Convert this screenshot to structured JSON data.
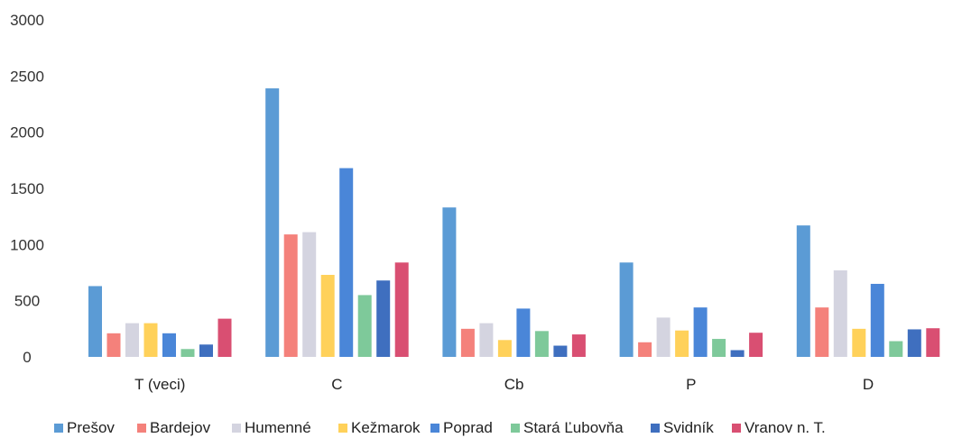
{
  "chart_data": {
    "type": "bar",
    "title": "",
    "xlabel": "",
    "ylabel": "",
    "ylim": [
      0,
      3000
    ],
    "yticks": [
      "0",
      "500",
      "1000",
      "1500",
      "2000",
      "2500",
      "3000"
    ],
    "grid": false,
    "legend_position": "bottom",
    "categories": [
      "T (veci)",
      "C",
      "Cb",
      "P",
      "D"
    ],
    "series": [
      {
        "name": "Prešov",
        "color": "#5b9bd5",
        "values": [
          630,
          2390,
          1330,
          840,
          1170
        ]
      },
      {
        "name": "Bardejov",
        "color": "#f4817b",
        "values": [
          210,
          1090,
          250,
          130,
          440
        ]
      },
      {
        "name": "Humenné",
        "color": "#d4d4e0",
        "values": [
          300,
          1110,
          300,
          350,
          770
        ]
      },
      {
        "name": "Kežmarok",
        "color": "#ffd15a",
        "values": [
          300,
          730,
          150,
          235,
          250
        ]
      },
      {
        "name": "Poprad",
        "color": "#4a86d8",
        "values": [
          210,
          1680,
          430,
          440,
          650
        ]
      },
      {
        "name": "Stará Ľubovňa",
        "color": "#7ec99a",
        "values": [
          70,
          550,
          230,
          160,
          140
        ]
      },
      {
        "name": "Svidník",
        "color": "#3f6fbf",
        "values": [
          110,
          680,
          100,
          60,
          245
        ]
      },
      {
        "name": "Vranov n. T.",
        "color": "#d94f72",
        "values": [
          340,
          840,
          200,
          215,
          255
        ]
      }
    ]
  }
}
